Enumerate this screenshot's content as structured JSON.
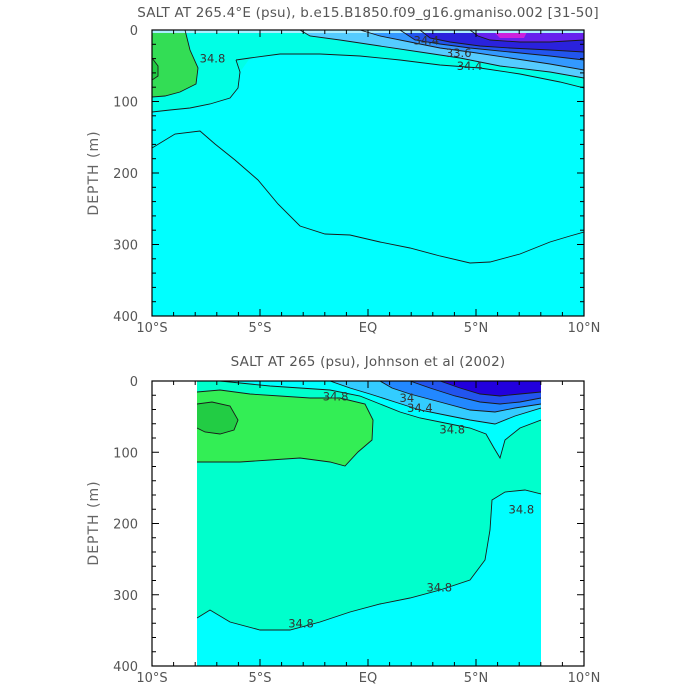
{
  "chart_data": [
    {
      "type": "contour",
      "title": "SALT AT 265.4°E (psu), b.e15.B1850.f09_g16.gmaniso.002 [31-50]",
      "xlabel": "",
      "ylabel": "DEPTH (m)",
      "xlim": [
        -10,
        10
      ],
      "ylim": [
        400,
        0
      ],
      "x_tick_labels": [
        "10°S",
        "5°S",
        "EQ",
        "5°N",
        "10°N"
      ],
      "y_tick_labels": [
        "0",
        "100",
        "200",
        "300",
        "400"
      ],
      "data_extent_x": [
        -10,
        10
      ],
      "contour_labels": [
        {
          "text": "34.8",
          "x": -7.2,
          "y": 40
        },
        {
          "text": "34.4",
          "x": 2.7,
          "y": 15
        },
        {
          "text": "33.6",
          "x": 4.2,
          "y": 32
        },
        {
          "text": "34.4",
          "x": 4.7,
          "y": 50
        }
      ],
      "colors": {
        "surface_fresh": "#9900ee",
        "fresh": "#2a33ee",
        "salty": "#33ee55",
        "mid": "#00ffe6",
        "background": "#00ffff"
      }
    },
    {
      "type": "contour",
      "title": "SALT AT 265 (psu), Johnson et al (2002)",
      "xlabel": "",
      "ylabel": "DEPTH (m)",
      "xlim": [
        -10,
        10
      ],
      "ylim": [
        400,
        0
      ],
      "x_tick_labels": [
        "10°S",
        "5°S",
        "EQ",
        "5°N",
        "10°N"
      ],
      "y_tick_labels": [
        "0",
        "100",
        "200",
        "300",
        "400"
      ],
      "data_extent_x": [
        -8,
        8
      ],
      "contour_labels": [
        {
          "text": "34.8",
          "x": -1.5,
          "y": 22
        },
        {
          "text": "34",
          "x": 1.8,
          "y": 24
        },
        {
          "text": "34.4",
          "x": 2.4,
          "y": 38
        },
        {
          "text": "34.8",
          "x": 3.9,
          "y": 68
        },
        {
          "text": "34.8",
          "x": 7.1,
          "y": 180
        },
        {
          "text": "34.8",
          "x": 3.3,
          "y": 290
        },
        {
          "text": "34.8",
          "x": -3.1,
          "y": 340
        }
      ],
      "colors": {
        "fresh": "#2200dd",
        "salty": "#33ee55",
        "mid": "#00ffcc",
        "background": "#00ffff"
      }
    }
  ]
}
